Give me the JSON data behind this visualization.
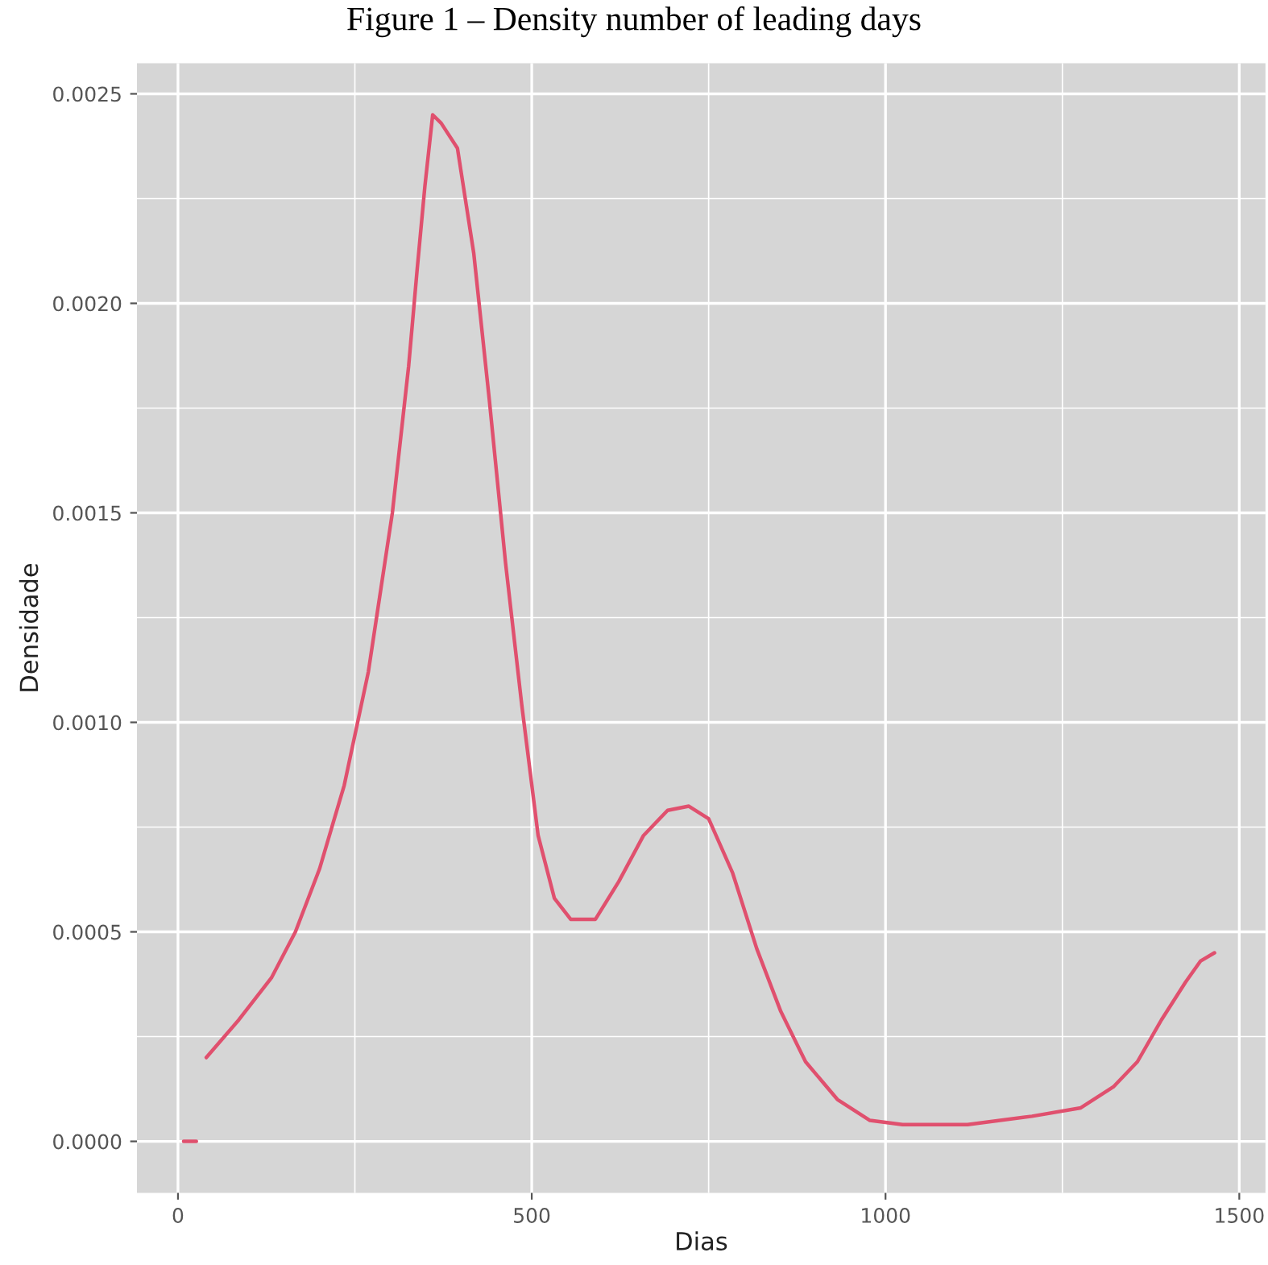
{
  "chart_data": {
    "type": "line",
    "title": "Figure 1 – Density number of leading days",
    "xlabel": "Dias",
    "ylabel": "Densidade",
    "series": [
      {
        "color": "#e0506e",
        "x": [
          8,
          26,
          32,
          40,
          86,
          132,
          166,
          200,
          235,
          269,
          303,
          326,
          338,
          349,
          360,
          372,
          395,
          418,
          440,
          463,
          486,
          509,
          532,
          555,
          590,
          623,
          658,
          692,
          722,
          750,
          784,
          818,
          852,
          887,
          932,
          978,
          1024,
          1116,
          1207,
          1276,
          1322,
          1356,
          1390,
          1424,
          1445,
          1465
        ],
        "values": [
          0.0,
          0.0,
          null,
          0.0002,
          0.00029,
          0.00039,
          0.0005,
          0.00065,
          0.00085,
          0.00112,
          0.0015,
          0.00185,
          0.00208,
          0.00228,
          0.00245,
          0.00243,
          0.00237,
          0.00212,
          0.00177,
          0.00138,
          0.00104,
          0.00073,
          0.00058,
          0.00053,
          0.00053,
          0.00062,
          0.00073,
          0.00079,
          0.0008,
          0.00077,
          0.00064,
          0.00046,
          0.00031,
          0.00019,
          0.0001,
          5e-05,
          4e-05,
          4e-05,
          6e-05,
          8e-05,
          0.00013,
          0.00019,
          0.00029,
          0.00038,
          0.00043,
          0.00045
        ]
      }
    ],
    "xlim": [
      -58,
      1537
    ],
    "xticks": [
      0,
      500,
      1000,
      1500
    ],
    "ylim": [
      -0.000123,
      0.002573
    ],
    "yticks": [
      {
        "value": 0.0,
        "label": "0.0000"
      },
      {
        "value": 0.0005,
        "label": "0.0005"
      },
      {
        "value": 0.001,
        "label": "0.0010"
      },
      {
        "value": 0.0015,
        "label": "0.0015"
      },
      {
        "value": 0.002,
        "label": "0.0020"
      },
      {
        "value": 0.0025,
        "label": "0.0025"
      }
    ],
    "grid": true,
    "line_style": "solid",
    "marker": "none"
  }
}
